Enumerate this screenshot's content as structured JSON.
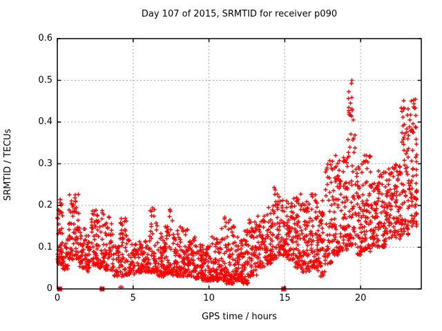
{
  "chart_data": {
    "type": "scatter",
    "title": "Day 107 of 2015, SRMTID for receiver p090",
    "xlabel": "GPS time / hours",
    "ylabel": "SRMTID / TECUs",
    "xlim": [
      0,
      24
    ],
    "ylim": [
      0,
      0.6
    ],
    "xticks": [
      0,
      5,
      10,
      15,
      20
    ],
    "xtick_labels": [
      "0",
      "5",
      "10",
      "15",
      "20"
    ],
    "yticks": [
      0,
      0.1,
      0.2,
      0.3,
      0.4,
      0.5,
      0.6
    ],
    "ytick_labels": [
      "0",
      "0.1",
      "0.2",
      "0.3",
      "0.4",
      "0.5",
      "0.6"
    ],
    "grid": true,
    "legend": "none",
    "marker": {
      "shape": "plus",
      "color": "#ff0000",
      "size": 7,
      "stroke_width": 1.4
    },
    "grid_color": "#aaaaaa",
    "border_color": "#000000",
    "series_name": "SRMTID",
    "seed": 20150107,
    "cluster_format": [
      "t_start_hours",
      "t_end_hours",
      "count",
      "y_min_TECUs",
      "y_max_TECUs",
      "bottom_bias_exponent"
    ],
    "clusters": [
      [
        0.0,
        0.35,
        55,
        0.06,
        0.215,
        1.6
      ],
      [
        0.35,
        0.75,
        30,
        0.045,
        0.12,
        1.6
      ],
      [
        0.75,
        1.45,
        70,
        0.07,
        0.235,
        1.5
      ],
      [
        1.45,
        1.85,
        35,
        0.05,
        0.15,
        1.7
      ],
      [
        1.85,
        2.25,
        35,
        0.04,
        0.13,
        1.7
      ],
      [
        2.25,
        2.65,
        45,
        0.055,
        0.19,
        1.6
      ],
      [
        2.65,
        3.15,
        40,
        0.05,
        0.19,
        1.8
      ],
      [
        3.15,
        3.65,
        45,
        0.045,
        0.175,
        1.7
      ],
      [
        3.65,
        4.1,
        35,
        0.03,
        0.105,
        1.7
      ],
      [
        4.1,
        4.6,
        45,
        0.03,
        0.17,
        1.8
      ],
      [
        4.6,
        5.1,
        40,
        0.035,
        0.12,
        1.7
      ],
      [
        5.1,
        5.6,
        40,
        0.04,
        0.115,
        1.7
      ],
      [
        5.6,
        6.1,
        40,
        0.04,
        0.13,
        1.7
      ],
      [
        6.1,
        6.6,
        50,
        0.04,
        0.2,
        1.9
      ],
      [
        6.6,
        7.1,
        45,
        0.03,
        0.135,
        1.7
      ],
      [
        7.1,
        7.6,
        50,
        0.035,
        0.19,
        1.8
      ],
      [
        7.6,
        8.1,
        50,
        0.03,
        0.145,
        1.7
      ],
      [
        8.1,
        8.6,
        50,
        0.03,
        0.15,
        1.7
      ],
      [
        8.6,
        9.1,
        50,
        0.03,
        0.125,
        1.7
      ],
      [
        9.1,
        9.6,
        50,
        0.025,
        0.115,
        1.7
      ],
      [
        9.6,
        10.1,
        50,
        0.02,
        0.105,
        1.7
      ],
      [
        10.1,
        10.6,
        50,
        0.02,
        0.125,
        1.7
      ],
      [
        10.6,
        11.15,
        55,
        0.02,
        0.175,
        1.8
      ],
      [
        11.15,
        11.65,
        55,
        0.012,
        0.165,
        1.8
      ],
      [
        11.65,
        12.15,
        50,
        0.02,
        0.125,
        1.7
      ],
      [
        12.15,
        12.65,
        50,
        0.012,
        0.145,
        1.7
      ],
      [
        12.65,
        13.15,
        50,
        0.03,
        0.175,
        1.7
      ],
      [
        13.15,
        13.65,
        45,
        0.05,
        0.185,
        1.6
      ],
      [
        13.65,
        14.15,
        50,
        0.06,
        0.2,
        1.6
      ],
      [
        14.15,
        14.65,
        50,
        0.07,
        0.245,
        1.6
      ],
      [
        14.65,
        15.15,
        48,
        0.08,
        0.215,
        1.5
      ],
      [
        15.15,
        15.65,
        55,
        0.07,
        0.225,
        1.5
      ],
      [
        15.65,
        16.15,
        55,
        0.05,
        0.23,
        1.5
      ],
      [
        16.15,
        16.65,
        55,
        0.04,
        0.22,
        1.5
      ],
      [
        16.65,
        17.15,
        55,
        0.05,
        0.23,
        1.5
      ],
      [
        17.15,
        17.65,
        50,
        0.03,
        0.215,
        1.5
      ],
      [
        17.65,
        18.15,
        50,
        0.06,
        0.31,
        1.6
      ],
      [
        18.15,
        18.65,
        55,
        0.08,
        0.335,
        1.6
      ],
      [
        18.65,
        19.15,
        55,
        0.09,
        0.315,
        1.5
      ],
      [
        19.15,
        19.65,
        65,
        0.1,
        0.505,
        1.7
      ],
      [
        19.65,
        20.15,
        50,
        0.08,
        0.305,
        1.5
      ],
      [
        20.15,
        20.65,
        55,
        0.09,
        0.325,
        1.5
      ],
      [
        20.65,
        21.15,
        50,
        0.1,
        0.27,
        1.4
      ],
      [
        21.15,
        21.65,
        52,
        0.1,
        0.285,
        1.4
      ],
      [
        21.65,
        22.15,
        52,
        0.12,
        0.3,
        1.4
      ],
      [
        22.15,
        22.65,
        55,
        0.12,
        0.3,
        1.4
      ],
      [
        22.65,
        23.15,
        65,
        0.13,
        0.455,
        1.6
      ],
      [
        23.15,
        23.7,
        75,
        0.15,
        0.455,
        1.5
      ]
    ],
    "axis_markers": {
      "shape": "filled-square",
      "color": "#ff0000",
      "size": 7,
      "y": 0,
      "hours": [
        0.15,
        2.95,
        14.93
      ]
    },
    "near_zero_points": [
      [
        4.15,
        0.004
      ],
      [
        4.25,
        0.004
      ]
    ]
  }
}
